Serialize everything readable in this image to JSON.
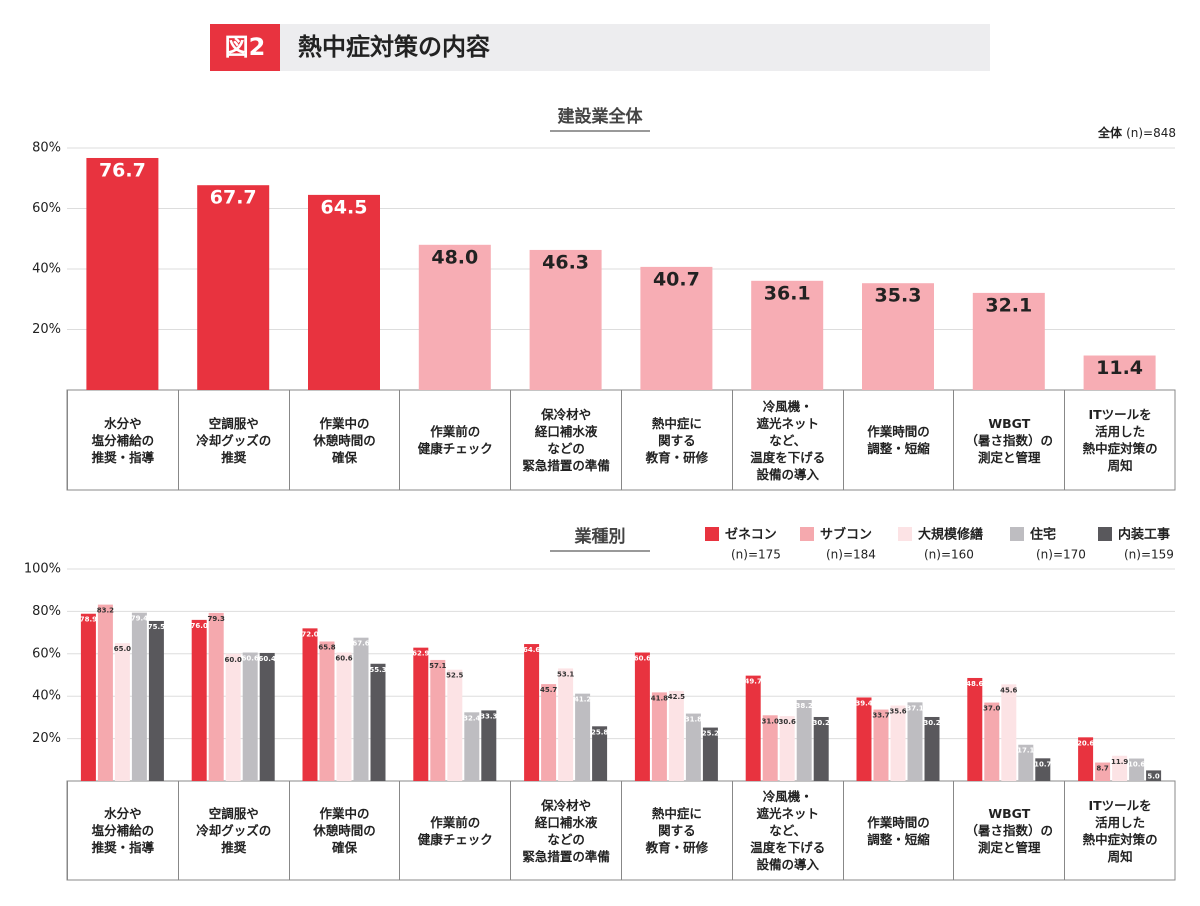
{
  "figure": {
    "label": "図2",
    "title": "熱中症対策の内容"
  },
  "chart_data": [
    {
      "type": "bar",
      "title": "建設業全体",
      "note_label": "全体",
      "note_n": "(n)=848",
      "categories": [
        "水分や\n塩分補給の\n推奨・指導",
        "空調服や\n冷却グッズの\n推奨",
        "作業中の\n休憩時間の\n確保",
        "作業前の\n健康チェック",
        "保冷材や\n経口補水液\nなどの\n緊急措置の準備",
        "熱中症に\n関する\n教育・研修",
        "冷風機・\n遮光ネット\nなど、\n温度を下げる\n設備の導入",
        "作業時間の\n調整・短縮",
        "WBGT\n（暑さ指数）の\n測定と管理",
        "ITツールを\n活用した\n熱中症対策の\n周知"
      ],
      "values": [
        76.7,
        67.7,
        64.5,
        48.0,
        46.3,
        40.7,
        36.1,
        35.3,
        32.1,
        11.4
      ],
      "value_labels": [
        "76.7",
        "67.7",
        "64.5",
        "48.0",
        "46.3",
        "40.7",
        "36.1",
        "35.3",
        "32.1",
        "11.4"
      ],
      "colors": [
        "#e8333f",
        "#e8333f",
        "#e8333f",
        "#f7adb4",
        "#f7adb4",
        "#f7adb4",
        "#f7adb4",
        "#f7adb4",
        "#f7adb4",
        "#f7adb4"
      ],
      "ylim": [
        0,
        80
      ],
      "yticks": [
        {
          "value": 20,
          "label": "20%"
        },
        {
          "value": 40,
          "label": "40%"
        },
        {
          "value": 60,
          "label": "60%"
        },
        {
          "value": 80,
          "label": "80%"
        }
      ],
      "grid": true
    },
    {
      "type": "bar",
      "title": "業種別",
      "categories": [
        "水分や\n塩分補給の\n推奨・指導",
        "空調服や\n冷却グッズの\n推奨",
        "作業中の\n休憩時間の\n確保",
        "作業前の\n健康チェック",
        "保冷材や\n経口補水液\nなどの\n緊急措置の準備",
        "熱中症に\n関する\n教育・研修",
        "冷風機・\n遮光ネット\nなど、\n温度を下げる\n設備の導入",
        "作業時間の\n調整・短縮",
        "WBGT\n（暑さ指数）の\n測定と管理",
        "ITツールを\n活用した\n熱中症対策の\n周知"
      ],
      "series": [
        {
          "name": "ゼネコン",
          "n_label": "(n)=175",
          "color": "#e8333f",
          "values": [
            78.9,
            76.0,
            72.0,
            62.9,
            64.6,
            60.6,
            49.7,
            39.4,
            48.6,
            20.6
          ],
          "value_labels": [
            "78.9",
            "76.0",
            "72.0",
            "62.9",
            "64.6",
            "60.6",
            "49.7",
            "39.4",
            "48.6",
            "20.6"
          ]
        },
        {
          "name": "サブコン",
          "n_label": "(n)=184",
          "color": "#f5a9ae",
          "values": [
            83.2,
            79.3,
            65.8,
            57.1,
            45.7,
            41.8,
            31.0,
            33.7,
            37.0,
            8.7
          ],
          "value_labels": [
            "83.2",
            "79.3",
            "65.8",
            "57.1",
            "45.7",
            "41.8",
            "31.0",
            "33.7",
            "37.0",
            "8.7"
          ]
        },
        {
          "name": "大規模修繕",
          "n_label": "(n)=160",
          "color": "#fce3e5",
          "values": [
            65.0,
            60.0,
            60.6,
            52.5,
            53.1,
            42.5,
            30.6,
            35.6,
            45.6,
            11.9
          ],
          "value_labels": [
            "65.0",
            "60.0",
            "60.6",
            "52.5",
            "53.1",
            "42.5",
            "30.6",
            "35.6",
            "45.6",
            "11.9"
          ]
        },
        {
          "name": "住宅",
          "n_label": "(n)=170",
          "color": "#bebdc1",
          "values": [
            79.4,
            60.6,
            67.6,
            32.4,
            41.2,
            31.8,
            38.2,
            37.1,
            17.1,
            10.6
          ],
          "value_labels": [
            "79.4",
            "60.6",
            "67.6",
            "32.4",
            "41.2",
            "31.8",
            "38.2",
            "37.1",
            "17.1",
            "10.6"
          ]
        },
        {
          "name": "内装工事",
          "n_label": "(n)=159",
          "color": "#59585c",
          "values": [
            75.5,
            60.4,
            55.3,
            33.3,
            25.8,
            25.2,
            30.2,
            30.2,
            10.7,
            5.0
          ],
          "value_labels": [
            "75.5",
            "60.4",
            "55.3",
            "33.3",
            "25.8",
            "25.2",
            "30.2",
            "30.2",
            "10.7",
            "5.0"
          ]
        }
      ],
      "ylim": [
        0,
        100
      ],
      "yticks": [
        {
          "value": 20,
          "label": "20%"
        },
        {
          "value": 40,
          "label": "40%"
        },
        {
          "value": 60,
          "label": "60%"
        },
        {
          "value": 80,
          "label": "80%"
        },
        {
          "value": 100,
          "label": "100%"
        }
      ],
      "grid": true
    }
  ]
}
